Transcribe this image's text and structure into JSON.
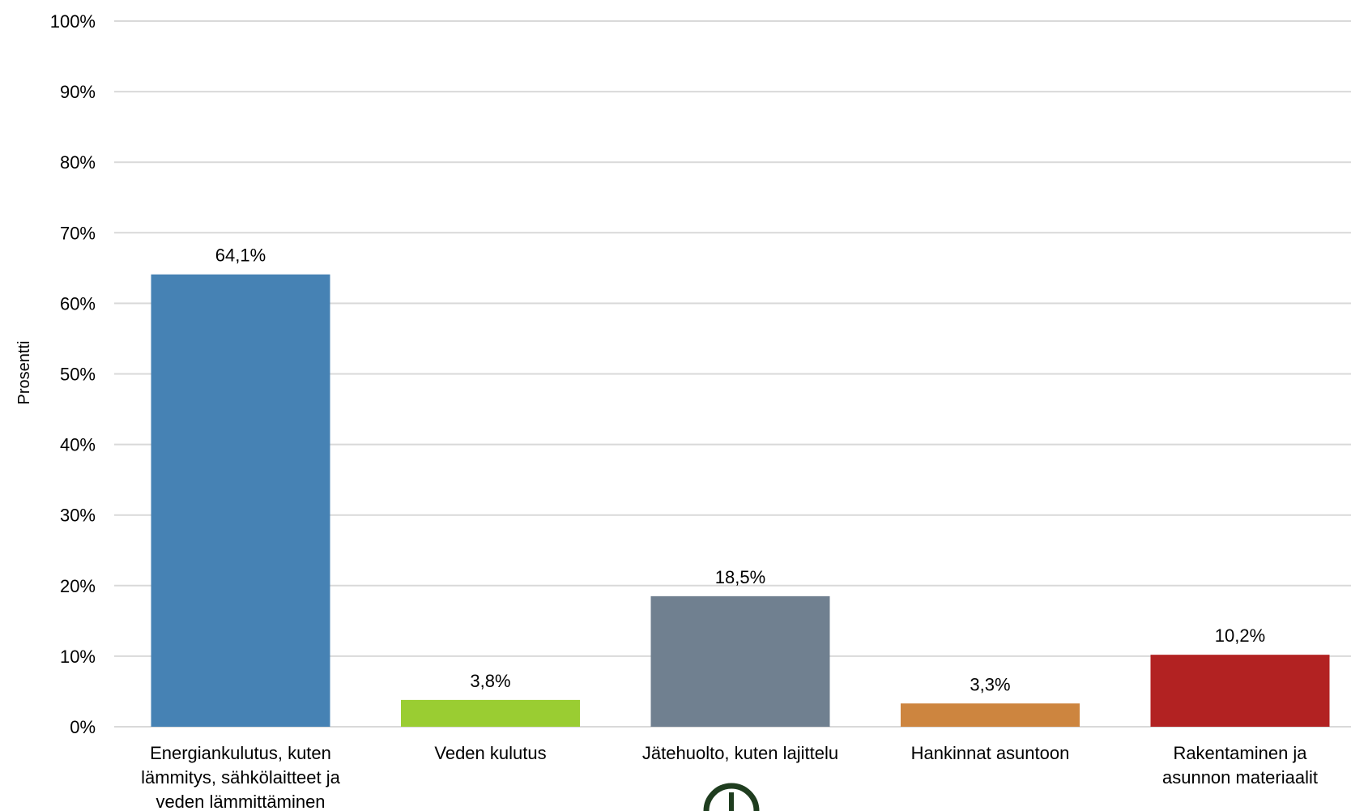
{
  "chart_data": {
    "type": "bar",
    "ylabel": "Prosentti",
    "ylim": [
      0,
      100
    ],
    "yticks": [
      "0%",
      "10%",
      "20%",
      "30%",
      "40%",
      "50%",
      "60%",
      "70%",
      "80%",
      "90%",
      "100%"
    ],
    "grid": true,
    "categories": [
      [
        "Energiankulutus, kuten",
        "lämmitys, sähkölaitteet ja",
        "veden lämmittäminen"
      ],
      [
        "Veden kulutus"
      ],
      [
        "Jätehuolto, kuten lajittelu"
      ],
      [
        "Hankinnat asuntoon"
      ],
      [
        "Rakentaminen ja",
        "asunnon materiaalit"
      ]
    ],
    "values": [
      64.1,
      3.8,
      18.5,
      3.3,
      10.2
    ],
    "value_labels": [
      "64,1%",
      "3,8%",
      "18,5%",
      "3,3%",
      "10,2%"
    ],
    "colors": [
      "#4682b4",
      "#9acd32",
      "#708090",
      "#cd853f",
      "#b22222"
    ],
    "gridline_color": "#d9d9d9"
  }
}
